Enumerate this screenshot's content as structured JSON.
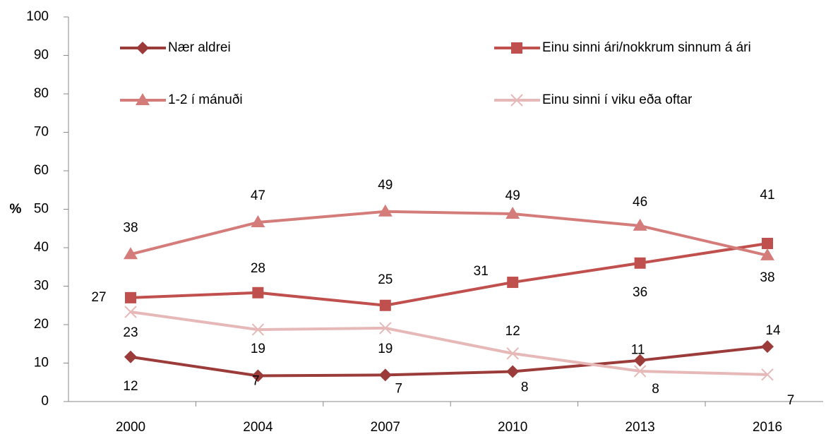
{
  "chart_data": {
    "type": "line",
    "y_label": "%",
    "categories": [
      "2000",
      "2004",
      "2007",
      "2010",
      "2013",
      "2016"
    ],
    "ylim": [
      0,
      100
    ],
    "yticks": [
      0,
      10,
      20,
      30,
      40,
      50,
      60,
      70,
      80,
      90,
      100
    ],
    "series": [
      {
        "name": "Nær aldrei",
        "color": "#9b3b3a",
        "marker": "diamond",
        "values": [
          11.6,
          6.7,
          6.9,
          7.8,
          10.7,
          14.3
        ],
        "value_labels": [
          "12",
          "7",
          "7",
          "8",
          "11",
          "14"
        ]
      },
      {
        "name": "Einu sinni ári/nokkrum sinnum á ári",
        "color": "#c0504d",
        "marker": "square",
        "values": [
          27.0,
          28.3,
          25.0,
          31.0,
          36.0,
          41.1
        ],
        "value_labels": [
          "27",
          "28",
          "25",
          "31",
          "36",
          "41"
        ]
      },
      {
        "name": "1-2 í mánuði",
        "color": "#d47c7a",
        "marker": "triangle",
        "values": [
          38.3,
          46.6,
          49.4,
          48.8,
          45.7,
          38.0
        ],
        "value_labels": [
          "38",
          "47",
          "49",
          "49",
          "46",
          "38"
        ]
      },
      {
        "name": "Einu sinni í viku eða oftar",
        "color": "#e6b9b8",
        "marker": "x",
        "values": [
          23.3,
          18.7,
          19.1,
          12.5,
          7.9,
          7.0
        ],
        "value_labels": [
          "23",
          "19",
          "19",
          "12",
          "8",
          "7"
        ]
      }
    ]
  }
}
